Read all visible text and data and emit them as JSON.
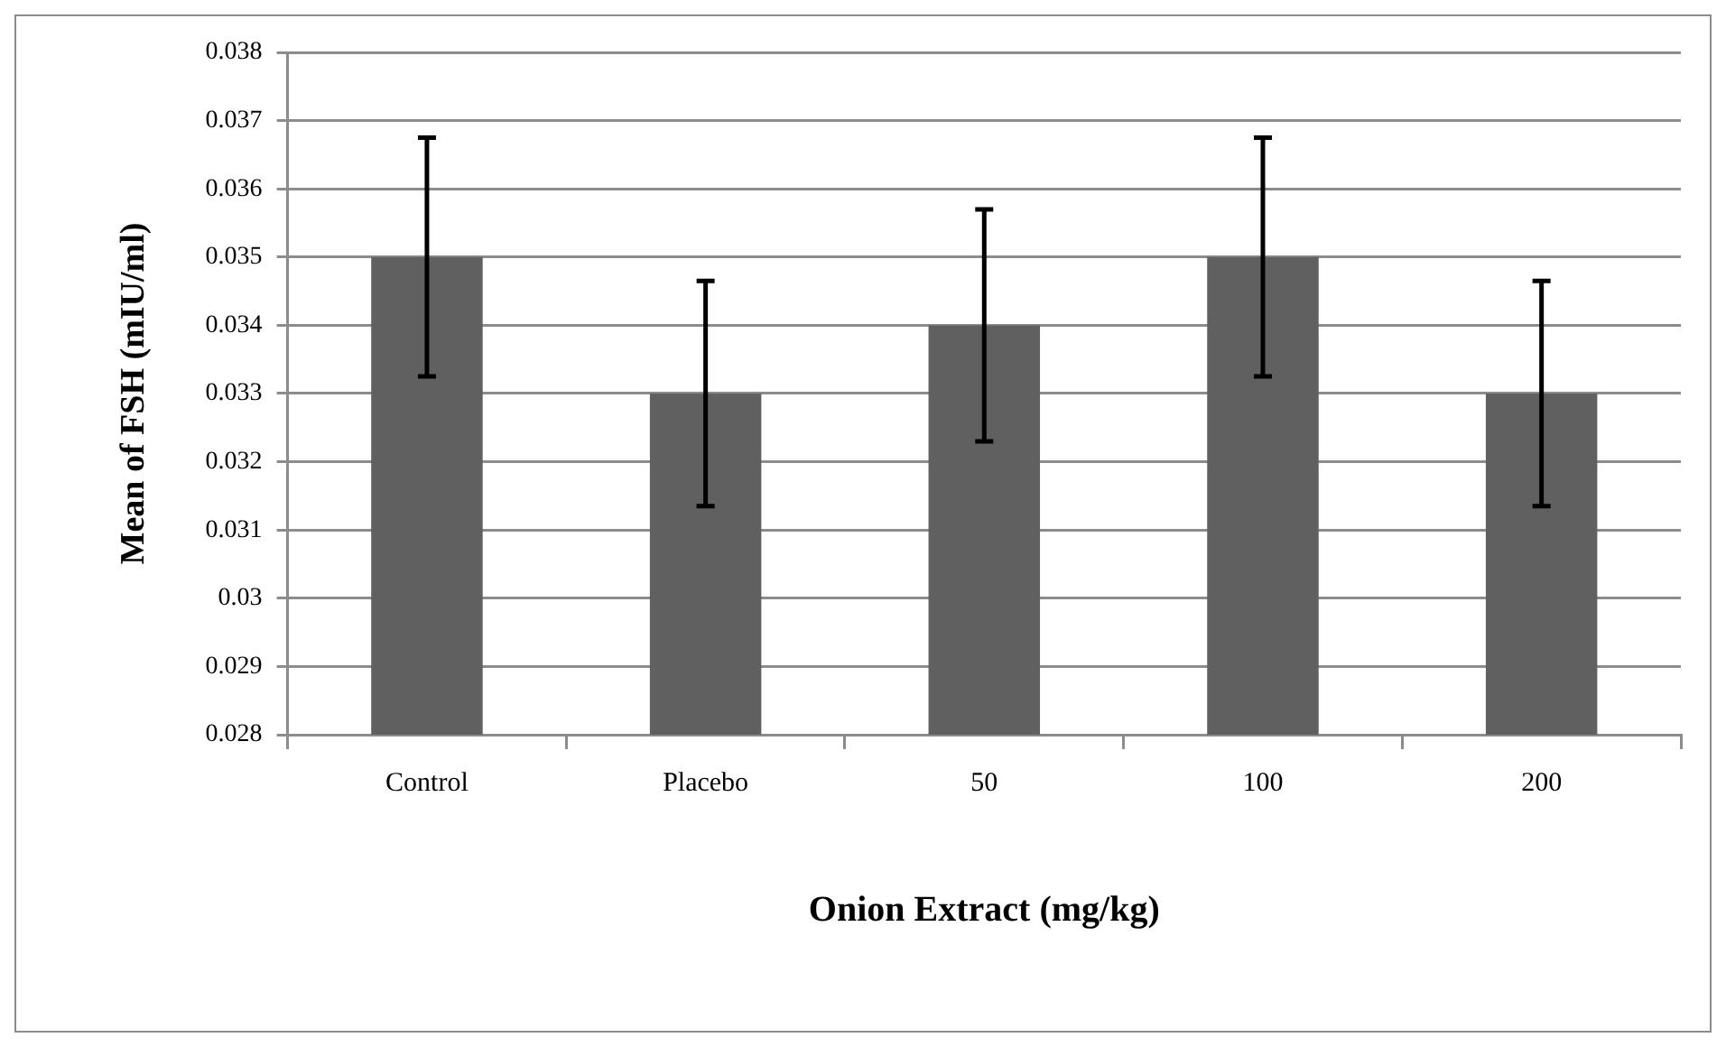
{
  "chart_data": {
    "type": "bar",
    "xlabel": "Onion Extract (mg/kg)",
    "ylabel": "Mean of FSH (mIU/ml)",
    "categories": [
      "Control",
      "Placebo",
      "50",
      "100",
      "200"
    ],
    "values": [
      0.035,
      0.033,
      0.034,
      0.035,
      0.033
    ],
    "errors": [
      0.00175,
      0.00165,
      0.0017,
      0.00175,
      0.00165
    ],
    "color": "#606060",
    "ylim": [
      0.028,
      0.038
    ],
    "yticks": [
      0.028,
      0.029,
      0.03,
      0.031,
      0.032,
      0.033,
      0.034,
      0.035,
      0.036,
      0.037,
      0.038
    ],
    "grid": "y",
    "legend": false
  }
}
